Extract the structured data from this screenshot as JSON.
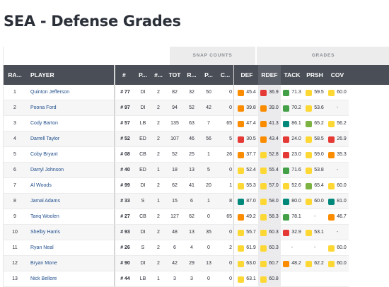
{
  "title": "SEA - Defense Grades",
  "group_headers": {
    "snap_counts": "SNAP COUNTS",
    "grades": "GRADES"
  },
  "columns": {
    "rank": "RA...",
    "player": "PLAYER",
    "number": "#",
    "position": "P...",
    "games": "#...",
    "total": "TOT",
    "run": "R...",
    "pass": "P...",
    "coverage_snaps": "C...",
    "def": "DEF",
    "rdef": "RDEF",
    "tack": "TACK",
    "prsh": "PRSH",
    "cov": "COV"
  },
  "grade_colors": {
    "red": "#e53935",
    "orange": "#fb8c00",
    "yellow": "#fdd835",
    "light_green": "#7cb342",
    "green": "#43a047",
    "teal": "#00897b"
  },
  "rows": [
    {
      "rank": "1",
      "player": "Quinton Jefferson",
      "number": "# 77",
      "position": "DI",
      "games": "2",
      "total": "82",
      "run": "32",
      "pass": "50",
      "cov": "0",
      "grades": [
        {
          "v": "45.4",
          "c": "#fb8c00"
        },
        {
          "v": "36.9",
          "c": "#e53935"
        },
        {
          "v": "71.3",
          "c": "#43a047"
        },
        {
          "v": "59.5",
          "c": "#fdd835"
        },
        {
          "v": "60.0",
          "c": "#fdd835"
        }
      ]
    },
    {
      "rank": "2",
      "player": "Poona Ford",
      "number": "# 97",
      "position": "DI",
      "games": "2",
      "total": "94",
      "run": "52",
      "pass": "42",
      "cov": "0",
      "grades": [
        {
          "v": "39.8",
          "c": "#fb8c00"
        },
        {
          "v": "39.0",
          "c": "#fb8c00"
        },
        {
          "v": "70.2",
          "c": "#43a047"
        },
        {
          "v": "53.6",
          "c": "#fdd835"
        },
        {
          "v": "-",
          "c": ""
        }
      ]
    },
    {
      "rank": "3",
      "player": "Cody Barton",
      "number": "# 57",
      "position": "LB",
      "games": "2",
      "total": "135",
      "run": "63",
      "pass": "7",
      "cov": "65",
      "grades": [
        {
          "v": "47.4",
          "c": "#fb8c00"
        },
        {
          "v": "41.3",
          "c": "#fb8c00"
        },
        {
          "v": "86.1",
          "c": "#00897b"
        },
        {
          "v": "65.2",
          "c": "#7cb342"
        },
        {
          "v": "56.2",
          "c": "#fdd835"
        }
      ]
    },
    {
      "rank": "4",
      "player": "Darrell Taylor",
      "number": "# 52",
      "position": "ED",
      "games": "2",
      "total": "107",
      "run": "46",
      "pass": "56",
      "cov": "5",
      "grades": [
        {
          "v": "30.5",
          "c": "#e53935"
        },
        {
          "v": "43.4",
          "c": "#fb8c00"
        },
        {
          "v": "24.0",
          "c": "#e53935"
        },
        {
          "v": "58.5",
          "c": "#fdd835"
        },
        {
          "v": "26.9",
          "c": "#e53935"
        }
      ]
    },
    {
      "rank": "5",
      "player": "Coby Bryant",
      "number": "# 08",
      "position": "CB",
      "games": "2",
      "total": "52",
      "run": "25",
      "pass": "1",
      "cov": "26",
      "grades": [
        {
          "v": "37.7",
          "c": "#fb8c00"
        },
        {
          "v": "52.8",
          "c": "#fdd835"
        },
        {
          "v": "23.0",
          "c": "#e53935"
        },
        {
          "v": "59.0",
          "c": "#fdd835"
        },
        {
          "v": "35.3",
          "c": "#fb8c00"
        }
      ]
    },
    {
      "rank": "6",
      "player": "Darryl Johnson",
      "number": "# 40",
      "position": "ED",
      "games": "1",
      "total": "18",
      "run": "13",
      "pass": "5",
      "cov": "0",
      "grades": [
        {
          "v": "52.4",
          "c": "#fdd835"
        },
        {
          "v": "55.4",
          "c": "#fdd835"
        },
        {
          "v": "71.6",
          "c": "#43a047"
        },
        {
          "v": "53.8",
          "c": "#fdd835"
        },
        {
          "v": "-",
          "c": ""
        }
      ]
    },
    {
      "rank": "7",
      "player": "Al Woods",
      "number": "# 99",
      "position": "DI",
      "games": "2",
      "total": "62",
      "run": "41",
      "pass": "20",
      "cov": "1",
      "grades": [
        {
          "v": "55.3",
          "c": "#fdd835"
        },
        {
          "v": "57.0",
          "c": "#fdd835"
        },
        {
          "v": "52.6",
          "c": "#fdd835"
        },
        {
          "v": "65.4",
          "c": "#7cb342"
        },
        {
          "v": "60.0",
          "c": "#fdd835"
        }
      ]
    },
    {
      "rank": "8",
      "player": "Jamal Adams",
      "number": "# 33",
      "position": "S",
      "games": "1",
      "total": "15",
      "run": "6",
      "pass": "1",
      "cov": "8",
      "grades": [
        {
          "v": "87.0",
          "c": "#00897b"
        },
        {
          "v": "58.0",
          "c": "#fdd835"
        },
        {
          "v": "80.0",
          "c": "#00897b"
        },
        {
          "v": "60.0",
          "c": "#fdd835"
        },
        {
          "v": "81.0",
          "c": "#00897b"
        }
      ]
    },
    {
      "rank": "9",
      "player": "Tariq Woolen",
      "number": "# 27",
      "position": "CB",
      "games": "2",
      "total": "127",
      "run": "62",
      "pass": "0",
      "cov": "65",
      "grades": [
        {
          "v": "49.2",
          "c": "#fb8c00"
        },
        {
          "v": "58.3",
          "c": "#fdd835"
        },
        {
          "v": "78.1",
          "c": "#43a047"
        },
        {
          "v": "-",
          "c": ""
        },
        {
          "v": "46.7",
          "c": "#fb8c00"
        }
      ]
    },
    {
      "rank": "10",
      "player": "Shelby Harris",
      "number": "# 93",
      "position": "DI",
      "games": "2",
      "total": "48",
      "run": "13",
      "pass": "35",
      "cov": "0",
      "grades": [
        {
          "v": "55.7",
          "c": "#fdd835"
        },
        {
          "v": "60.3",
          "c": "#fdd835"
        },
        {
          "v": "32.9",
          "c": "#e53935"
        },
        {
          "v": "53.1",
          "c": "#fdd835"
        },
        {
          "v": "-",
          "c": ""
        }
      ]
    },
    {
      "rank": "11",
      "player": "Ryan Neal",
      "number": "# 26",
      "position": "S",
      "games": "2",
      "total": "6",
      "run": "4",
      "pass": "0",
      "cov": "2",
      "grades": [
        {
          "v": "61.9",
          "c": "#fdd835"
        },
        {
          "v": "60.3",
          "c": "#fdd835"
        },
        {
          "v": "-",
          "c": ""
        },
        {
          "v": "-",
          "c": ""
        },
        {
          "v": "60.0",
          "c": "#fdd835"
        }
      ]
    },
    {
      "rank": "12",
      "player": "Bryan Mone",
      "number": "# 90",
      "position": "DI",
      "games": "2",
      "total": "42",
      "run": "29",
      "pass": "13",
      "cov": "0",
      "grades": [
        {
          "v": "63.0",
          "c": "#fdd835"
        },
        {
          "v": "60.7",
          "c": "#fdd835"
        },
        {
          "v": "48.2",
          "c": "#fb8c00"
        },
        {
          "v": "62.2",
          "c": "#fdd835"
        },
        {
          "v": "60.0",
          "c": "#fdd835"
        }
      ]
    },
    {
      "rank": "13",
      "player": "Nick Bellore",
      "number": "# 44",
      "position": "LB",
      "games": "1",
      "total": "3",
      "run": "3",
      "pass": "0",
      "cov": "0",
      "grades": [
        {
          "v": "63.1",
          "c": "#fdd835"
        },
        {
          "v": "60.8",
          "c": "#fdd835"
        },
        {
          "v": "",
          "c": ""
        },
        {
          "v": "",
          "c": ""
        },
        {
          "v": "",
          "c": ""
        }
      ]
    }
  ]
}
